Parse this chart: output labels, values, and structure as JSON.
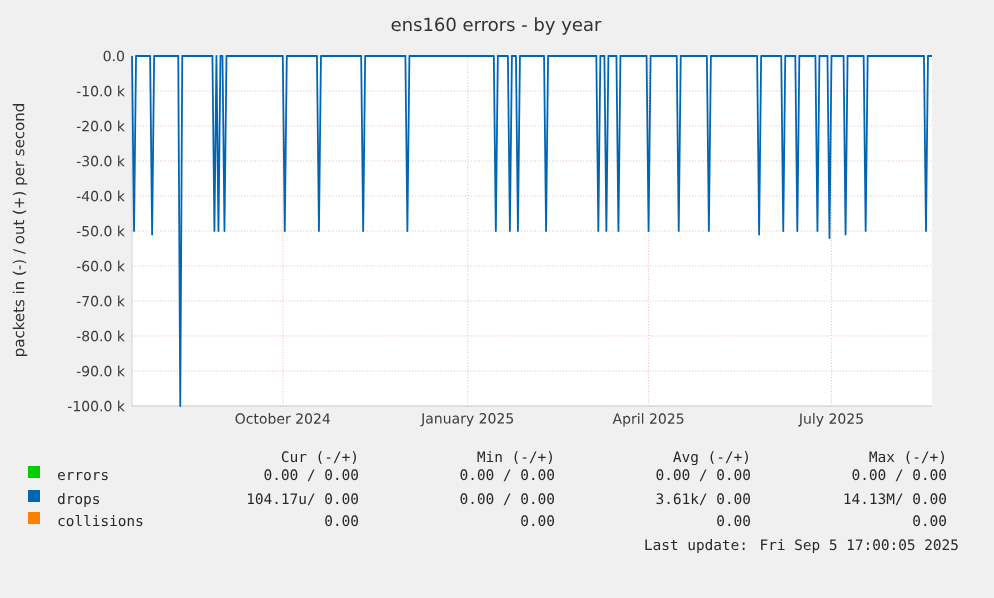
{
  "chart_data": {
    "type": "line",
    "title": "ens160 errors - by year",
    "ylabel": "packets in (-) / out (+) per second",
    "xlim": [
      "2024-08-02",
      "2025-09-04"
    ],
    "xticks": [
      {
        "value": "2024-10-16",
        "label": "October 2024"
      },
      {
        "value": "2025-01-16",
        "label": "January 2025"
      },
      {
        "value": "2025-04-16",
        "label": "April 2025"
      },
      {
        "value": "2025-07-16",
        "label": "July 2025"
      }
    ],
    "ylim": [
      -100,
      0
    ],
    "yticks": [
      {
        "value": 0,
        "label": "0.0"
      },
      {
        "value": -10,
        "label": "-10.0 k"
      },
      {
        "value": -20,
        "label": "-20.0 k"
      },
      {
        "value": -30,
        "label": "-30.0 k"
      },
      {
        "value": -40,
        "label": "-40.0 k"
      },
      {
        "value": -50,
        "label": "-50.0 k"
      },
      {
        "value": -60,
        "label": "-60.0 k"
      },
      {
        "value": -70,
        "label": "-70.0 k"
      },
      {
        "value": -80,
        "label": "-80.0 k"
      },
      {
        "value": -90,
        "label": "-90.0 k"
      },
      {
        "value": -100,
        "label": "-100.0 k"
      }
    ],
    "grid": true,
    "legend": "bottom",
    "series": [
      {
        "name": "errors",
        "color": "#00cc00"
      },
      {
        "name": "collisions",
        "color": "#ff8000"
      },
      {
        "name": "drops",
        "color": "#0066b3",
        "x": [
          "2024-08-02",
          "2024-08-03",
          "2024-08-04",
          "2024-08-11",
          "2024-08-12",
          "2024-08-13",
          "2024-08-25",
          "2024-08-26",
          "2024-08-27",
          "2024-09-11",
          "2024-09-12",
          "2024-09-13",
          "2024-09-14",
          "2024-09-15",
          "2024-09-16",
          "2024-09-17",
          "2024-09-18",
          "2024-10-16",
          "2024-10-17",
          "2024-10-18",
          "2024-11-02",
          "2024-11-03",
          "2024-11-04",
          "2024-11-24",
          "2024-11-25",
          "2024-11-26",
          "2024-12-16",
          "2024-12-17",
          "2024-12-18",
          "2025-01-29",
          "2025-01-30",
          "2025-01-31",
          "2025-02-05",
          "2025-02-06",
          "2025-02-07",
          "2025-02-09",
          "2025-02-10",
          "2025-02-11",
          "2025-02-23",
          "2025-02-24",
          "2025-02-25",
          "2025-03-21",
          "2025-03-22",
          "2025-03-23",
          "2025-03-25",
          "2025-03-26",
          "2025-03-27",
          "2025-03-31",
          "2025-04-01",
          "2025-04-02",
          "2025-04-15",
          "2025-04-16",
          "2025-04-17",
          "2025-04-30",
          "2025-05-01",
          "2025-05-02",
          "2025-05-15",
          "2025-05-16",
          "2025-05-17",
          "2025-06-09",
          "2025-06-10",
          "2025-06-11",
          "2025-06-21",
          "2025-06-22",
          "2025-06-23",
          "2025-06-28",
          "2025-06-29",
          "2025-06-30",
          "2025-07-08",
          "2025-07-09",
          "2025-07-10",
          "2025-07-14",
          "2025-07-15",
          "2025-07-16",
          "2025-07-22",
          "2025-07-23",
          "2025-07-24",
          "2025-08-01",
          "2025-08-02",
          "2025-08-03",
          "2025-08-31",
          "2025-09-01",
          "2025-09-02",
          "2025-09-04"
        ],
        "values": [
          0,
          -50,
          0,
          0,
          -51,
          0,
          0,
          -100,
          0,
          0,
          -50,
          0,
          -50,
          0,
          0,
          -50,
          0,
          0,
          -50,
          0,
          0,
          -50,
          0,
          0,
          -50,
          0,
          0,
          -50,
          0,
          0,
          -50,
          0,
          0,
          -50,
          0,
          0,
          -50,
          0,
          0,
          -50,
          0,
          0,
          -50,
          0,
          0,
          -50,
          0,
          0,
          -50,
          0,
          0,
          -50,
          0,
          0,
          -50,
          0,
          0,
          -50,
          0,
          0,
          -51,
          0,
          0,
          -50,
          0,
          0,
          -50,
          0,
          0,
          -50,
          0,
          0,
          -52,
          0,
          0,
          -51,
          0,
          0,
          -50,
          0,
          0,
          -50,
          0,
          0
        ]
      }
    ],
    "annotations": [
      "Cur (-/+)",
      "Min (-/+)",
      "Avg (-/+)",
      "Max (-/+)",
      "0.00 /  0.00",
      "0.00 /  0.00",
      "0.00 /  0.00",
      "0.00 /  0.00",
      "104.17u/  0.00",
      "0.00 /  0.00",
      "3.61k/  0.00",
      "14.13M/  0.00",
      "0.00",
      "0.00",
      "0.00",
      "0.00",
      "Last update: Fri Sep  5 17:00:05 2025"
    ]
  }
}
